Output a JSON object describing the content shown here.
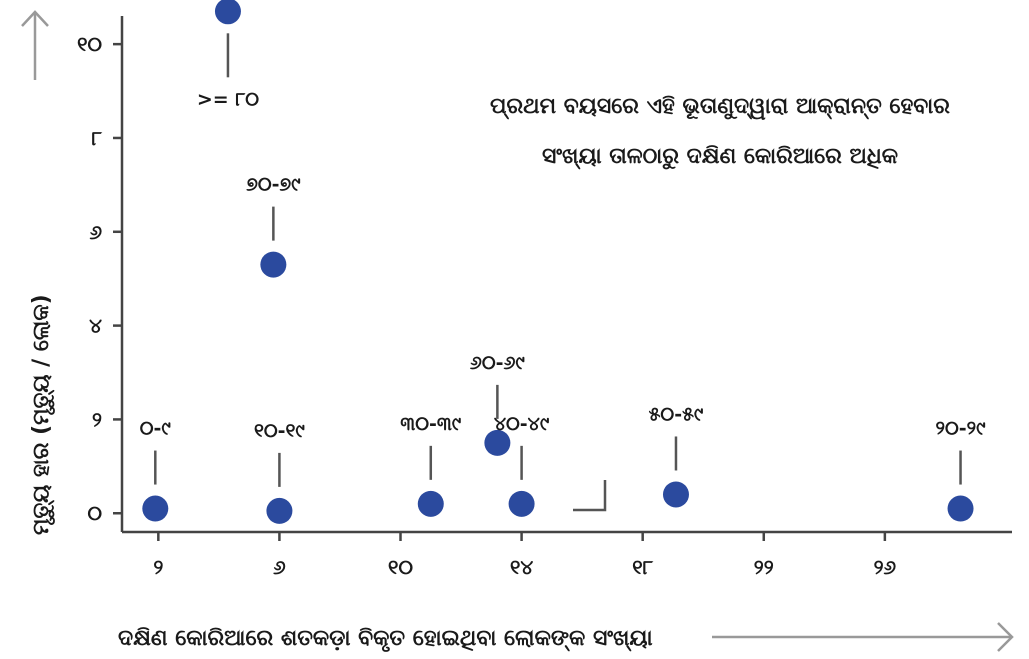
{
  "chart_data": {
    "type": "scatter",
    "title": "",
    "xlabel": "ଦକ୍ଷିଣ କୋରିଆରେ ଶତକଡ଼ା ବିକୃତ ହୋଇଥିବା ଲୋକଙ୍କ ସଂଖ୍ୟା",
    "ylabel": "ମୃତ୍ୟୁ ହାର (ମୃତ୍ୟୁ / ଲୋକ)",
    "xticks": [
      {
        "value": 2,
        "label": "୨"
      },
      {
        "value": 6,
        "label": "୬"
      },
      {
        "value": 10,
        "label": "୧୦"
      },
      {
        "value": 14,
        "label": "୧୪"
      },
      {
        "value": 18,
        "label": "୧୮"
      },
      {
        "value": 22,
        "label": "୨୨"
      },
      {
        "value": 26,
        "label": "୨୬"
      }
    ],
    "yticks": [
      {
        "value": 0,
        "label": "୦"
      },
      {
        "value": 2,
        "label": "୨"
      },
      {
        "value": 4,
        "label": "୪"
      },
      {
        "value": 6,
        "label": "୬"
      },
      {
        "value": 8,
        "label": "୮"
      },
      {
        "value": 10,
        "label": "୧୦"
      }
    ],
    "xlim": [
      0.8,
      30.2
    ],
    "ylim": [
      -0.4,
      10.6
    ],
    "color": "#2b4a9e",
    "points": [
      {
        "x": 1.9,
        "y": 0.1,
        "label": "୦-୯"
      },
      {
        "x": 4.3,
        "y": 10.7,
        "label": ">= ୮୦"
      },
      {
        "x": 5.8,
        "y": 5.3,
        "label": "୭୦-୭୯"
      },
      {
        "x": 6.0,
        "y": 0.05,
        "label": "୧୦-୧୯"
      },
      {
        "x": 11.0,
        "y": 0.2,
        "label": "୩୦-୩୯"
      },
      {
        "x": 13.2,
        "y": 1.5,
        "label": "୬୦-୬୯"
      },
      {
        "x": 14.0,
        "y": 0.2,
        "label": "୪୦-୪୯"
      },
      {
        "x": 19.1,
        "y": 0.4,
        "label": "୫୦-୫୯"
      },
      {
        "x": 28.5,
        "y": 0.1,
        "label": "୨୦-୨୯"
      }
    ],
    "annotation": [
      "ପ୍ରଥମ ବୟସରେ ଏହି ଭୂତାଣୁଦ୍ୱାରା ଆକ୍ରାନ୍ତ ହେବାର",
      "ସଂଖ୍ୟା ତାଳଠାରୁ ଦକ୍ଷିଣ କୋରିଆରେ ଅଧିକ"
    ],
    "grid": false,
    "legend": "none"
  }
}
